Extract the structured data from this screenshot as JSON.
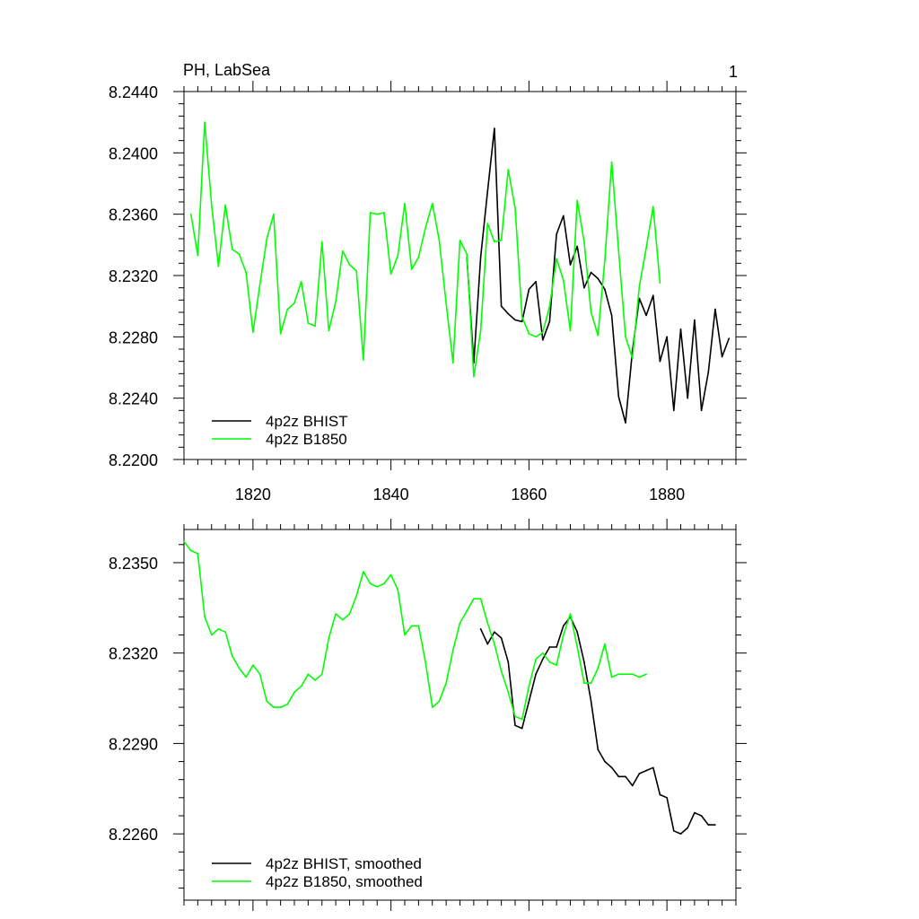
{
  "chart_data": [
    {
      "type": "line",
      "title": "PH, LabSea",
      "panel_label": "1",
      "xlim": [
        1810,
        1890
      ],
      "ylim": [
        8.22,
        8.244
      ],
      "x_ticks": [
        1820,
        1840,
        1860,
        1880
      ],
      "y_ticks": [
        "8.2200",
        "8.2240",
        "8.2280",
        "8.2320",
        "8.2360",
        "8.2400",
        "8.2440"
      ],
      "legend": "bottom-left",
      "series": [
        {
          "name": "4p2z BHIST",
          "color": "#000000",
          "x": [
            1851,
            1852,
            1853,
            1854,
            1855,
            1856,
            1857,
            1858,
            1859,
            1860,
            1861,
            1862,
            1863,
            1864,
            1865,
            1866,
            1867,
            1868,
            1869,
            1870,
            1871,
            1872,
            1873,
            1874,
            1875,
            1876,
            1877,
            1878,
            1879,
            1880,
            1881,
            1882,
            1883,
            1884,
            1885,
            1886,
            1887,
            1888,
            1889
          ],
          "values": [
            8.2332,
            8.2263,
            8.2332,
            8.2375,
            8.2416,
            8.23,
            8.2295,
            8.2291,
            8.229,
            8.2311,
            8.2316,
            8.2278,
            8.229,
            8.2347,
            8.2359,
            8.2327,
            8.2339,
            8.2312,
            8.2322,
            8.2318,
            8.2311,
            8.2294,
            8.2241,
            8.2224,
            8.2271,
            8.2305,
            8.2294,
            8.2307,
            8.2264,
            8.228,
            8.2232,
            8.2285,
            8.224,
            8.2291,
            8.2232,
            8.2257,
            8.2298,
            8.2267,
            8.2279
          ]
        },
        {
          "name": "4p2z B1850",
          "color": "#00ff00",
          "x": [
            1811,
            1812,
            1813,
            1814,
            1815,
            1816,
            1817,
            1818,
            1819,
            1820,
            1821,
            1822,
            1823,
            1824,
            1825,
            1826,
            1827,
            1828,
            1829,
            1830,
            1831,
            1832,
            1833,
            1834,
            1835,
            1836,
            1837,
            1838,
            1839,
            1840,
            1841,
            1842,
            1843,
            1844,
            1845,
            1846,
            1847,
            1848,
            1849,
            1850,
            1851,
            1852,
            1853,
            1854,
            1855,
            1856,
            1857,
            1858,
            1859,
            1860,
            1861,
            1862,
            1863,
            1864,
            1865,
            1866,
            1867,
            1868,
            1869,
            1870,
            1871,
            1872,
            1873,
            1874,
            1875,
            1876,
            1877,
            1878,
            1879
          ],
          "values": [
            8.236,
            8.2333,
            8.242,
            8.2366,
            8.2326,
            8.2366,
            8.2337,
            8.2334,
            8.2322,
            8.2283,
            8.2314,
            8.2344,
            8.236,
            8.2282,
            8.2298,
            8.2302,
            8.2316,
            8.2289,
            8.2287,
            8.2342,
            8.2284,
            8.2303,
            8.2336,
            8.2327,
            8.2323,
            8.2265,
            8.2361,
            8.236,
            8.2361,
            8.2321,
            8.2333,
            8.2367,
            8.2324,
            8.2332,
            8.2351,
            8.2367,
            8.2343,
            8.2302,
            8.2263,
            8.2343,
            8.2334,
            8.2254,
            8.2284,
            8.2354,
            8.2342,
            8.2343,
            8.2389,
            8.2364,
            8.2293,
            8.2282,
            8.228,
            8.2283,
            8.23,
            8.2331,
            8.2317,
            8.2284,
            8.2369,
            8.2342,
            8.2296,
            8.2281,
            8.233,
            8.2394,
            8.2336,
            8.228,
            8.2266,
            8.2313,
            8.2338,
            8.2365,
            8.2315
          ]
        }
      ]
    },
    {
      "type": "line",
      "xlim": [
        1810,
        1890
      ],
      "ylim": [
        8.2238,
        8.2361
      ],
      "x_ticks": [
        1820,
        1840,
        1860,
        1880
      ],
      "y_ticks": [
        "8.2260",
        "8.2290",
        "8.2320",
        "8.2350"
      ],
      "legend": "bottom-left",
      "series": [
        {
          "name": "4p2z BHIST, smoothed",
          "color": "#000000",
          "x": [
            1853,
            1854,
            1855,
            1856,
            1857,
            1858,
            1859,
            1860,
            1861,
            1862,
            1863,
            1864,
            1865,
            1866,
            1867,
            1868,
            1869,
            1870,
            1871,
            1872,
            1873,
            1874,
            1875,
            1876,
            1877,
            1878,
            1879,
            1880,
            1881,
            1882,
            1883,
            1884,
            1885,
            1886,
            1887
          ],
          "values": [
            8.2328,
            8.2323,
            8.2327,
            8.2325,
            8.2317,
            8.2296,
            8.2295,
            8.2304,
            8.2313,
            8.2318,
            8.2322,
            8.2322,
            8.2329,
            8.2332,
            8.2327,
            8.2317,
            8.2304,
            8.2288,
            8.2284,
            8.2282,
            8.2279,
            8.2279,
            8.2276,
            8.228,
            8.2281,
            8.2282,
            8.2273,
            8.2272,
            8.2261,
            8.226,
            8.2262,
            8.2267,
            8.2266,
            8.2263,
            8.2263
          ]
        },
        {
          "name": "4p2z B1850, smoothed",
          "color": "#00ff00",
          "x": [
            1810,
            1811,
            1812,
            1813,
            1814,
            1815,
            1816,
            1817,
            1818,
            1819,
            1820,
            1821,
            1822,
            1823,
            1824,
            1825,
            1826,
            1827,
            1828,
            1829,
            1830,
            1831,
            1832,
            1833,
            1834,
            1835,
            1836,
            1837,
            1838,
            1839,
            1840,
            1841,
            1842,
            1843,
            1844,
            1845,
            1846,
            1847,
            1848,
            1849,
            1850,
            1851,
            1852,
            1853,
            1854,
            1855,
            1856,
            1857,
            1858,
            1859,
            1860,
            1861,
            1862,
            1863,
            1864,
            1865,
            1866,
            1867,
            1868,
            1869,
            1870,
            1871,
            1872,
            1873,
            1874,
            1875,
            1876,
            1877
          ],
          "values": [
            8.2357,
            8.2354,
            8.2353,
            8.2332,
            8.2326,
            8.2328,
            8.2327,
            8.2319,
            8.2315,
            8.2312,
            8.2316,
            8.2313,
            8.2304,
            8.2302,
            8.2302,
            8.2303,
            8.2307,
            8.2309,
            8.2313,
            8.2311,
            8.2313,
            8.2325,
            8.2333,
            8.2331,
            8.2333,
            8.2339,
            8.2347,
            8.2343,
            8.2342,
            8.2343,
            8.2346,
            8.2341,
            8.2326,
            8.2329,
            8.2329,
            8.2317,
            8.2302,
            8.2304,
            8.231,
            8.2321,
            8.233,
            8.2334,
            8.2338,
            8.2338,
            8.233,
            8.2323,
            8.2314,
            8.2307,
            8.2299,
            8.2298,
            8.2309,
            8.2318,
            8.232,
            8.2317,
            8.2316,
            8.2326,
            8.2333,
            8.2322,
            8.231,
            8.231,
            8.2315,
            8.2323,
            8.2312,
            8.2313,
            8.2313,
            8.2313,
            8.2312,
            8.2313
          ]
        }
      ]
    }
  ]
}
